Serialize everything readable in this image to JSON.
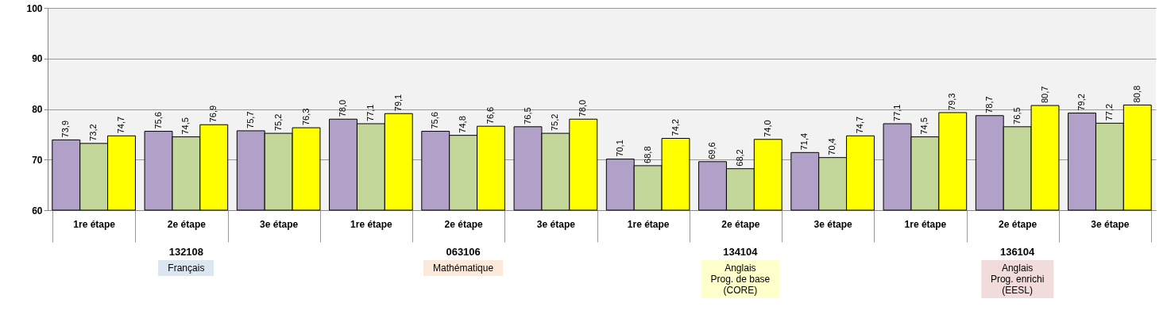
{
  "chart_data": {
    "type": "bar",
    "categories": [
      "1re étape",
      "2e étape",
      "3e étape",
      "1re étape",
      "2e étape",
      "3e étape",
      "1re étape",
      "2e étape",
      "3e étape",
      "1re étape",
      "2e étape",
      "3e étape"
    ],
    "series": [
      {
        "color": "#b1a0c7",
        "values": [
          73.9,
          75.6,
          75.7,
          78.0,
          75.6,
          76.5,
          70.1,
          69.6,
          71.4,
          77.1,
          78.7,
          79.2
        ],
        "value_labels": [
          "73,9",
          "75,6",
          "75,7",
          "78,0",
          "75,6",
          "76,5",
          "70,1",
          "69,6",
          "71,4",
          "77,1",
          "78,7",
          "79,2"
        ]
      },
      {
        "color": "#c4d79b",
        "values": [
          73.2,
          74.5,
          75.2,
          77.1,
          74.8,
          75.2,
          68.8,
          68.2,
          70.4,
          74.5,
          76.5,
          77.2
        ],
        "value_labels": [
          "73,2",
          "74,5",
          "75,2",
          "77,1",
          "74,8",
          "75,2",
          "68,8",
          "68,2",
          "70,4",
          "74,5",
          "76,5",
          "77,2"
        ]
      },
      {
        "color": "#ffff00",
        "values": [
          74.7,
          76.9,
          76.3,
          79.1,
          76.6,
          78.0,
          74.2,
          74.0,
          74.7,
          79.3,
          80.7,
          80.8
        ],
        "value_labels": [
          "74,7",
          "76,9",
          "76,3",
          "79,1",
          "76,6",
          "78,0",
          "74,2",
          "74,0",
          "74,7",
          "79,3",
          "80,7",
          "80,8"
        ]
      }
    ],
    "ylim": [
      60,
      100
    ],
    "yticks": [
      60,
      70,
      80,
      90,
      100
    ],
    "grid": "y",
    "annotations": [
      "132108",
      "063106",
      "134104",
      "136104",
      "Français",
      "Mathématique",
      "Anglais\nProg. de base\n(CORE)",
      "Anglais\nProg. enrichi\n(EESL)"
    ]
  }
}
